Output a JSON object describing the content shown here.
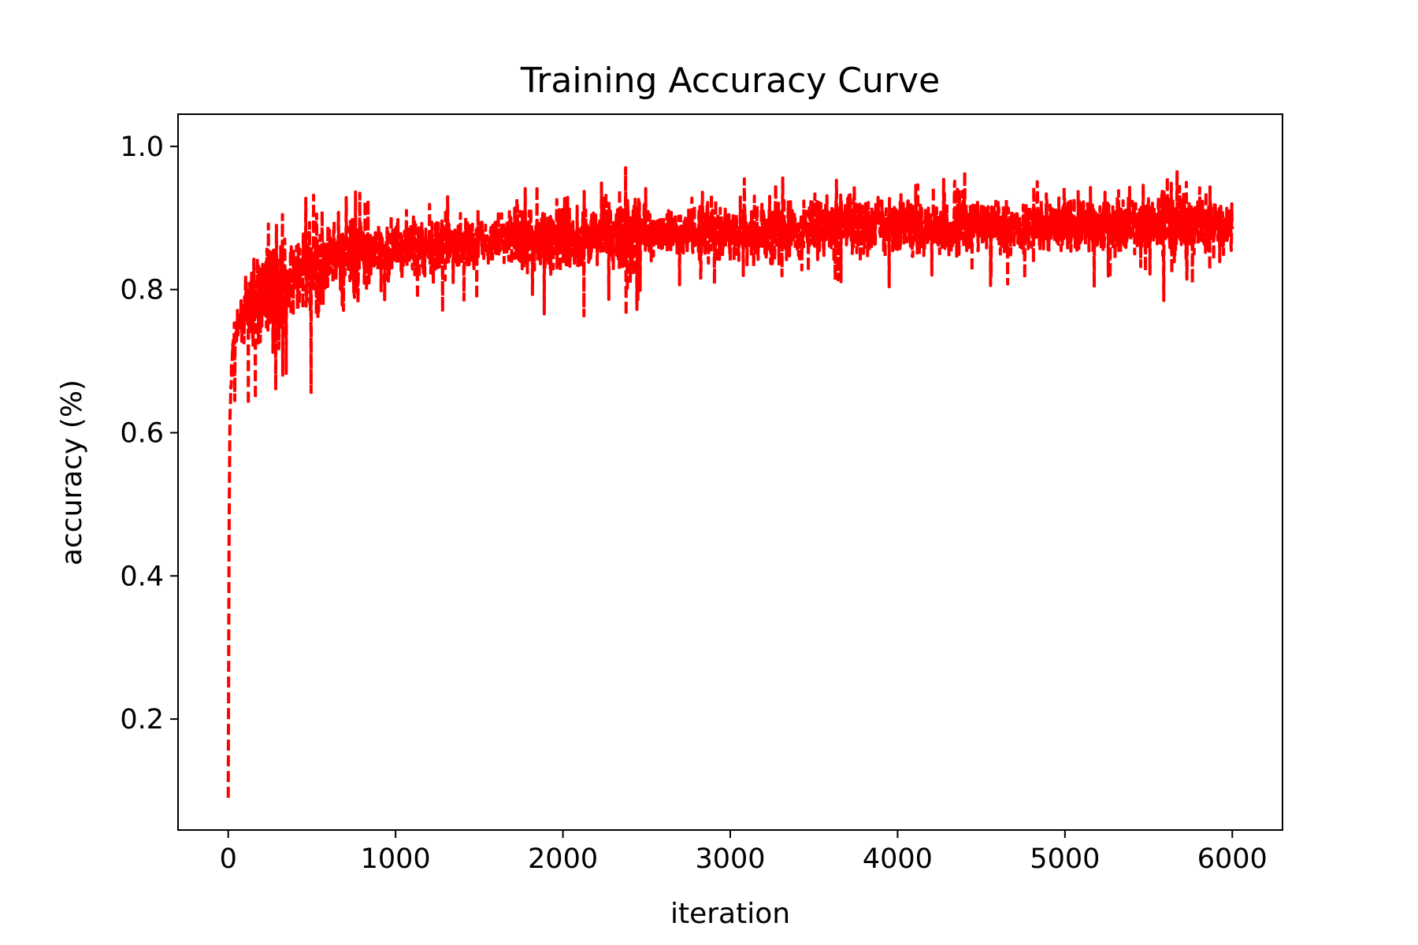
{
  "chart_data": {
    "type": "line",
    "title": "Training Accuracy Curve",
    "xlabel": "iteration",
    "ylabel": "accuracy (%)",
    "xlim": [
      -300,
      6300
    ],
    "ylim": [
      0.045,
      1.045
    ],
    "xticks": [
      0,
      1000,
      2000,
      3000,
      4000,
      5000,
      6000
    ],
    "xtick_labels": [
      "0",
      "1000",
      "2000",
      "3000",
      "4000",
      "5000",
      "6000"
    ],
    "yticks": [
      0.2,
      0.4,
      0.6,
      0.8,
      1.0
    ],
    "ytick_labels": [
      "0.2",
      "0.4",
      "0.6",
      "0.8",
      "1.0"
    ],
    "grid": false,
    "legend": "none",
    "series": [
      {
        "color": "#ff0000",
        "line_style": "dashed",
        "x": [
          0,
          5,
          10,
          20,
          30,
          50,
          75,
          100,
          150,
          200,
          250,
          300,
          350,
          400,
          450,
          500,
          550,
          600,
          650,
          700,
          750,
          800,
          900,
          1000,
          1100,
          1200,
          1300,
          1400,
          1500,
          1600,
          1700,
          1800,
          1900,
          2000,
          2100,
          2200,
          2300,
          2400,
          2500,
          2600,
          2700,
          2800,
          2900,
          3000,
          3100,
          3200,
          3300,
          3400,
          3500,
          3600,
          3700,
          3800,
          3900,
          4000,
          4100,
          4200,
          4300,
          4400,
          4500,
          4600,
          4700,
          4800,
          4900,
          5000,
          5100,
          5200,
          5300,
          5400,
          5500,
          5600,
          5700,
          5800,
          5900,
          6000
        ],
        "y": [
          0.09,
          0.46,
          0.62,
          0.69,
          0.72,
          0.74,
          0.76,
          0.77,
          0.78,
          0.79,
          0.8,
          0.8,
          0.81,
          0.82,
          0.82,
          0.83,
          0.83,
          0.84,
          0.84,
          0.84,
          0.85,
          0.85,
          0.85,
          0.86,
          0.86,
          0.86,
          0.86,
          0.86,
          0.87,
          0.87,
          0.87,
          0.87,
          0.87,
          0.87,
          0.87,
          0.88,
          0.88,
          0.88,
          0.88,
          0.88,
          0.88,
          0.88,
          0.88,
          0.88,
          0.88,
          0.88,
          0.88,
          0.88,
          0.89,
          0.89,
          0.89,
          0.89,
          0.89,
          0.89,
          0.89,
          0.89,
          0.89,
          0.89,
          0.89,
          0.89,
          0.89,
          0.89,
          0.89,
          0.89,
          0.89,
          0.89,
          0.89,
          0.89,
          0.89,
          0.89,
          0.89,
          0.89,
          0.89,
          0.89
        ],
        "band_low": [
          0.09,
          0.46,
          0.62,
          0.64,
          0.64,
          0.64,
          0.64,
          0.64,
          0.63,
          0.63,
          0.64,
          0.66,
          0.68,
          0.7,
          0.7,
          0.63,
          0.72,
          0.75,
          0.76,
          0.77,
          0.73,
          0.78,
          0.78,
          0.78,
          0.77,
          0.77,
          0.76,
          0.78,
          0.77,
          0.78,
          0.79,
          0.79,
          0.76,
          0.79,
          0.75,
          0.77,
          0.78,
          0.75,
          0.8,
          0.79,
          0.8,
          0.8,
          0.8,
          0.76,
          0.79,
          0.74,
          0.8,
          0.81,
          0.81,
          0.81,
          0.81,
          0.8,
          0.8,
          0.8,
          0.81,
          0.81,
          0.77,
          0.81,
          0.8,
          0.81,
          0.8,
          0.81,
          0.81,
          0.8,
          0.8,
          0.79,
          0.81,
          0.81,
          0.82,
          0.78,
          0.8,
          0.81,
          0.82,
          0.82
        ],
        "band_high": [
          0.09,
          0.7,
          0.7,
          0.74,
          0.76,
          0.78,
          0.8,
          0.84,
          0.87,
          0.9,
          0.91,
          0.94,
          0.89,
          0.91,
          0.93,
          0.93,
          0.96,
          0.98,
          0.92,
          0.94,
          0.95,
          0.94,
          0.93,
          0.92,
          0.93,
          0.93,
          0.94,
          0.92,
          0.93,
          0.92,
          0.93,
          0.95,
          0.94,
          0.96,
          0.94,
          0.95,
          0.96,
          1.0,
          0.94,
          0.93,
          0.94,
          0.95,
          0.94,
          0.95,
          0.96,
          0.95,
          0.97,
          0.94,
          0.96,
          0.95,
          0.98,
          0.97,
          0.96,
          0.95,
          0.96,
          0.95,
          0.96,
          0.97,
          0.95,
          0.96,
          0.95,
          0.96,
          0.95,
          0.95,
          0.96,
          0.95,
          0.96,
          0.95,
          0.96,
          0.99,
          0.97,
          0.95,
          0.96,
          0.95
        ]
      }
    ]
  }
}
